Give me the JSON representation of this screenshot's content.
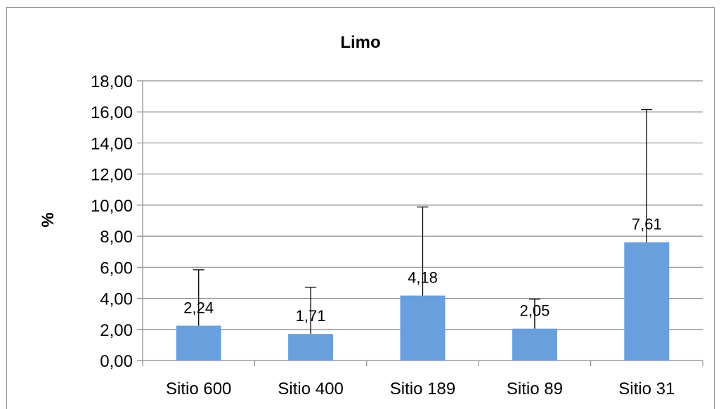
{
  "chart_data": {
    "type": "bar",
    "title": "Limo",
    "xlabel": "",
    "ylabel": "%",
    "categories": [
      "Sitio 600",
      "Sitio 400",
      "Sitio 189",
      "Sitio 89",
      "Sitio 31"
    ],
    "series": [
      {
        "values": [
          2.24,
          1.71,
          4.18,
          2.05,
          7.61
        ],
        "data_labels": [
          "2,24",
          "1,71",
          "4,18",
          "2,05",
          "7,61"
        ],
        "error_plus": [
          3.6,
          3.0,
          5.7,
          1.9,
          8.55
        ]
      }
    ],
    "ylim": [
      0,
      18
    ],
    "yticks": [
      0,
      2,
      4,
      6,
      8,
      10,
      12,
      14,
      16,
      18
    ],
    "ytick_labels": [
      "0,00",
      "2,00",
      "4,00",
      "6,00",
      "8,00",
      "10,00",
      "12,00",
      "14,00",
      "16,00",
      "18,00"
    ],
    "grid": true,
    "legend": "none",
    "colors": {
      "bar": "#6a9fde",
      "grid": "#8c8c8c",
      "axis": "#8c8c8c",
      "error_bar": "#000000"
    }
  }
}
